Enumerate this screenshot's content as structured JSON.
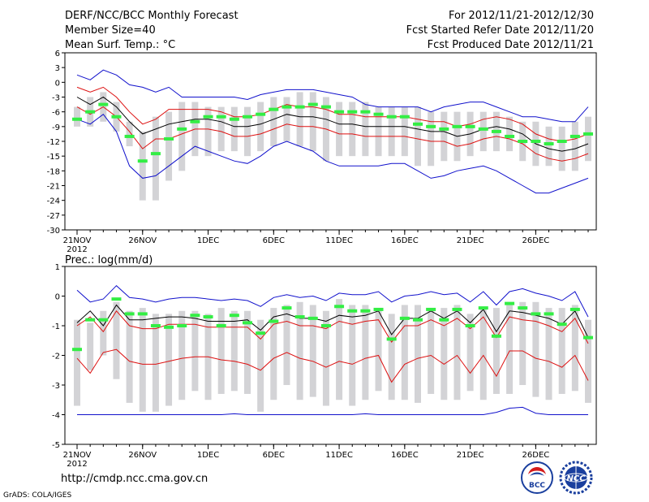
{
  "header": {
    "title": "DERF/NCC/BCC Monthly Forecast",
    "member_size": "Member Size=40",
    "variable": "Mean Surf. Temp.: °C",
    "period": "For 2012/11/21-2012/12/30",
    "refer_date": "Fcst Started Refer Date 2012/11/20",
    "produced_date": "Fcst Produced Date 2012/11/21"
  },
  "footer": {
    "url": "http://cmdp.ncc.cma.gov.cn",
    "credit": "GrADS: COLA/IGES",
    "logo_bcc": "BCC",
    "logo_ncc": "NCC"
  },
  "colors": {
    "box": "#d3d3d6",
    "median": "#33ee44",
    "mean": "#000000",
    "spread": "#dd1111",
    "envelope": "#1111cc"
  },
  "chart_data": [
    {
      "type": "box",
      "title": "Mean Surf. Temp.: °C",
      "ylim": [
        -30,
        6
      ],
      "yticks": [
        6,
        3,
        0,
        -3,
        -6,
        -9,
        -12,
        -15,
        -18,
        -21,
        -24,
        -27,
        -30
      ],
      "xlim": [
        1,
        40
      ],
      "xticks": [
        {
          "day": 1,
          "label": "21NOV",
          "sub": "2012"
        },
        {
          "day": 6,
          "label": "26NOV",
          "sub": ""
        },
        {
          "day": 11,
          "label": "1DEC",
          "sub": ""
        },
        {
          "day": 16,
          "label": "6DEC",
          "sub": ""
        },
        {
          "day": 21,
          "label": "11DEC",
          "sub": ""
        },
        {
          "day": 26,
          "label": "16DEC",
          "sub": ""
        },
        {
          "day": 31,
          "label": "21DEC",
          "sub": ""
        },
        {
          "day": 36,
          "label": "26DEC",
          "sub": ""
        }
      ],
      "box_low": [
        -9,
        -9,
        -8,
        -10,
        -13,
        -24,
        -24,
        -20,
        -18,
        -15,
        -15,
        -14,
        -14,
        -15,
        -14,
        -13,
        -12,
        -13,
        -14,
        -16,
        -15,
        -15,
        -15,
        -15,
        -15,
        -15,
        -17,
        -17,
        -16,
        -16,
        -15,
        -14,
        -14,
        -14,
        -16,
        -17,
        -17,
        -18,
        -18,
        -16
      ],
      "box_high": [
        -5,
        -3,
        -2,
        -4,
        -8,
        -10,
        -7,
        -6,
        -4,
        -4,
        -5,
        -5,
        -5,
        -5,
        -4,
        -3,
        -3,
        -2,
        -2,
        -3,
        -4,
        -4,
        -4,
        -5,
        -5,
        -5,
        -5,
        -6,
        -6,
        -6,
        -6,
        -6,
        -6,
        -7,
        -8,
        -8,
        -9,
        -9,
        -8,
        -7
      ],
      "median": [
        -7.5,
        -6,
        -4.5,
        -7,
        -11,
        -16,
        -14.5,
        -11.5,
        -9.5,
        -8,
        -7,
        -7,
        -7.5,
        -7,
        -6.5,
        -5.5,
        -5,
        -5,
        -4.5,
        -5,
        -6,
        -6,
        -6,
        -6.5,
        -7,
        -7,
        -8.5,
        -9,
        -9.5,
        -9,
        -9,
        -9.5,
        -10,
        -11,
        -12,
        -12,
        -12.5,
        -12,
        -11,
        -10.5
      ],
      "series": [
        {
          "name": "mean",
          "role": "mean",
          "values": [
            -3,
            -4.5,
            -3,
            -5,
            -8,
            -10.5,
            -9.5,
            -8.5,
            -8,
            -7.5,
            -7.5,
            -8,
            -9,
            -9,
            -8.5,
            -7.5,
            -6.5,
            -7,
            -7,
            -7.5,
            -8.5,
            -8.5,
            -9,
            -9,
            -9,
            -9,
            -9.5,
            -10,
            -10,
            -11,
            -10.5,
            -9.5,
            -9,
            -9.5,
            -10.5,
            -12.5,
            -13.5,
            -14,
            -13.5,
            -12.5
          ]
        },
        {
          "name": "mean+sd",
          "role": "spread",
          "values": [
            -1,
            -2,
            -1,
            -3,
            -6,
            -8.5,
            -7.5,
            -5.5,
            -5.5,
            -5.5,
            -5.5,
            -6,
            -7,
            -7,
            -6.5,
            -5.5,
            -4.5,
            -5,
            -5,
            -5.5,
            -6.5,
            -6.5,
            -7,
            -7,
            -7,
            -7,
            -7.5,
            -8,
            -8,
            -9,
            -8.5,
            -7.5,
            -7,
            -7.5,
            -8.5,
            -10.5,
            -11.5,
            -12,
            -11.5,
            -10.5
          ]
        },
        {
          "name": "mean-sd",
          "role": "spread",
          "values": [
            -5,
            -6.5,
            -5,
            -7,
            -10,
            -13.5,
            -11.5,
            -11.5,
            -10.5,
            -9.5,
            -9.5,
            -10,
            -11,
            -11,
            -10.5,
            -9.5,
            -8.5,
            -9,
            -9,
            -9.5,
            -10.5,
            -10.5,
            -11,
            -11,
            -11,
            -11,
            -11.5,
            -12,
            -12,
            -13,
            -12.5,
            -11.5,
            -11,
            -11.5,
            -12.5,
            -14.5,
            -15.5,
            -16,
            -15.5,
            -14.5
          ]
        },
        {
          "name": "max",
          "role": "envelope",
          "values": [
            1.5,
            0.5,
            2.5,
            1.5,
            -0.5,
            -1,
            -2,
            -1,
            -3,
            -3,
            -3,
            -3,
            -3,
            -3.5,
            -2.5,
            -2,
            -1.5,
            -1.5,
            -1.5,
            -2,
            -2.5,
            -3,
            -4.5,
            -5,
            -5,
            -5,
            -5,
            -6,
            -5,
            -4.5,
            -4,
            -4,
            -5,
            -6,
            -7,
            -7,
            -7.5,
            -8,
            -8,
            -5
          ]
        },
        {
          "name": "min",
          "role": "envelope",
          "values": [
            -7.5,
            -8.5,
            -6.5,
            -10,
            -17,
            -19.5,
            -19,
            -17,
            -15,
            -13,
            -14,
            -15,
            -16,
            -16.5,
            -15,
            -13,
            -12,
            -13,
            -14,
            -16,
            -17,
            -17,
            -17,
            -17,
            -16.5,
            -16.5,
            -18,
            -19.5,
            -19,
            -18,
            -17.5,
            -17,
            -18,
            -19.5,
            -21,
            -22.5,
            -22.5,
            -21.5,
            -20.5,
            -19.5
          ]
        }
      ]
    },
    {
      "type": "box",
      "title": "Prec.: log(mm/d)",
      "ylim": [
        -5,
        1
      ],
      "yticks": [
        1,
        0,
        -1,
        -2,
        -3,
        -4,
        -5
      ],
      "xlim": [
        1,
        40
      ],
      "xticks": [
        {
          "day": 1,
          "label": "21NOV",
          "sub": "2012"
        },
        {
          "day": 6,
          "label": "26NOV",
          "sub": ""
        },
        {
          "day": 11,
          "label": "1DEC",
          "sub": ""
        },
        {
          "day": 16,
          "label": "6DEC",
          "sub": ""
        },
        {
          "day": 21,
          "label": "11DEC",
          "sub": ""
        },
        {
          "day": 26,
          "label": "16DEC",
          "sub": ""
        },
        {
          "day": 31,
          "label": "21DEC",
          "sub": ""
        },
        {
          "day": 36,
          "label": "26DEC",
          "sub": ""
        }
      ],
      "box_low": [
        -3.7,
        -2.5,
        -2,
        -2.8,
        -3.6,
        -3.9,
        -3.9,
        -3.7,
        -3.5,
        -3.2,
        -3.5,
        -3.3,
        -3.2,
        -3.3,
        -3.9,
        -3.5,
        -3,
        -3.5,
        -3.4,
        -3.7,
        -3.5,
        -3.7,
        -3.5,
        -3.2,
        -3.5,
        -3.5,
        -3.6,
        -3.3,
        -3.5,
        -3.5,
        -3.2,
        -3.5,
        -3.3,
        -3.3,
        -3,
        -3.4,
        -3.5,
        -3.3,
        -3.2,
        -3.6
      ],
      "box_high": [
        -0.8,
        -0.9,
        -0.5,
        -0.2,
        -0.5,
        -0.4,
        -0.6,
        -0.6,
        -0.5,
        -0.5,
        -0.6,
        -0.4,
        -0.5,
        -0.5,
        -0.8,
        -0.4,
        -0.3,
        -0.2,
        -0.3,
        -0.5,
        -0.1,
        -0.3,
        -0.3,
        -0.4,
        -0.6,
        -0.3,
        -0.3,
        -0.4,
        -0.4,
        -0.3,
        -0.6,
        -0.4,
        -0.4,
        -0.2,
        -0.2,
        -0.2,
        -0.4,
        -0.4,
        -0.3,
        -0.8
      ],
      "median": [
        -1.8,
        -0.8,
        -0.8,
        -0.1,
        -0.6,
        -0.6,
        -1,
        -1.05,
        -1,
        -0.65,
        -0.7,
        -1,
        -0.65,
        -0.9,
        -1.25,
        -0.85,
        -0.4,
        -0.7,
        -0.75,
        -1,
        -0.35,
        -0.5,
        -0.5,
        -0.45,
        -1.45,
        -0.75,
        -0.8,
        -0.45,
        -0.8,
        -0.45,
        -1,
        -0.4,
        -1.35,
        -0.25,
        -0.4,
        -0.6,
        -0.6,
        -0.95,
        -0.45,
        -1.4
      ],
      "series": [
        {
          "name": "mean",
          "role": "mean",
          "values": [
            -0.9,
            -0.5,
            -1,
            -0.3,
            -0.8,
            -0.8,
            -0.75,
            -0.7,
            -0.7,
            -0.75,
            -0.85,
            -0.85,
            -0.85,
            -0.8,
            -1.15,
            -0.7,
            -0.6,
            -0.75,
            -0.75,
            -0.85,
            -0.65,
            -0.7,
            -0.65,
            -0.5,
            -1.3,
            -0.75,
            -0.75,
            -0.5,
            -0.75,
            -0.5,
            -0.9,
            -0.45,
            -1.2,
            -0.5,
            -0.55,
            -0.65,
            -0.75,
            -0.95,
            -0.5,
            -1.4
          ]
        },
        {
          "name": "mean+sd",
          "role": "spread",
          "values": [
            -1,
            -0.7,
            -1.2,
            -0.5,
            -1,
            -1.1,
            -1.1,
            -0.95,
            -0.95,
            -0.95,
            -1.05,
            -1.05,
            -1.05,
            -1.05,
            -1.45,
            -0.95,
            -0.85,
            -1,
            -1,
            -1.1,
            -0.85,
            -0.95,
            -0.85,
            -0.8,
            -1.55,
            -1,
            -1,
            -0.8,
            -1,
            -0.75,
            -1.1,
            -0.7,
            -1.4,
            -0.7,
            -0.8,
            -0.85,
            -1,
            -1.2,
            -0.75,
            -1.6
          ]
        },
        {
          "name": "mean-sd",
          "role": "spread",
          "values": [
            -2.1,
            -2.6,
            -1.9,
            -1.8,
            -2.2,
            -2.3,
            -2.3,
            -2.2,
            -2.1,
            -2.05,
            -2.05,
            -2.15,
            -2.2,
            -2.3,
            -2.5,
            -2.1,
            -1.9,
            -2.1,
            -2.2,
            -2.4,
            -2.2,
            -2.3,
            -2.1,
            -2,
            -2.9,
            -2.3,
            -2.1,
            -2,
            -2.3,
            -2,
            -2.6,
            -2,
            -2.7,
            -1.85,
            -1.85,
            -2.1,
            -2.2,
            -2.4,
            -2,
            -2.85
          ]
        },
        {
          "name": "max",
          "role": "envelope",
          "values": [
            0.2,
            -0.2,
            -0.1,
            0.35,
            -0.05,
            -0.1,
            -0.2,
            -0.1,
            -0.05,
            -0.05,
            -0.1,
            -0.15,
            -0.1,
            -0.15,
            -0.35,
            -0.05,
            0.05,
            -0.05,
            0,
            -0.15,
            0.1,
            0.05,
            0.05,
            0.15,
            -0.2,
            0,
            0.05,
            0.15,
            0.05,
            0.1,
            -0.2,
            0.15,
            -0.3,
            0.15,
            0.25,
            0.1,
            0,
            -0.15,
            0.15,
            -0.7
          ]
        },
        {
          "name": "min",
          "role": "envelope",
          "values": [
            -4,
            -4,
            -4,
            -4,
            -4,
            -4,
            -4,
            -4,
            -4,
            -4,
            -4,
            -4,
            -3.97,
            -4,
            -4,
            -4,
            -4,
            -4,
            -4,
            -4,
            -4,
            -4,
            -3.97,
            -4,
            -4,
            -4,
            -4,
            -4,
            -4,
            -4,
            -4,
            -4,
            -3.92,
            -3.78,
            -3.75,
            -3.95,
            -4,
            -4,
            -4,
            -4
          ]
        }
      ]
    }
  ]
}
